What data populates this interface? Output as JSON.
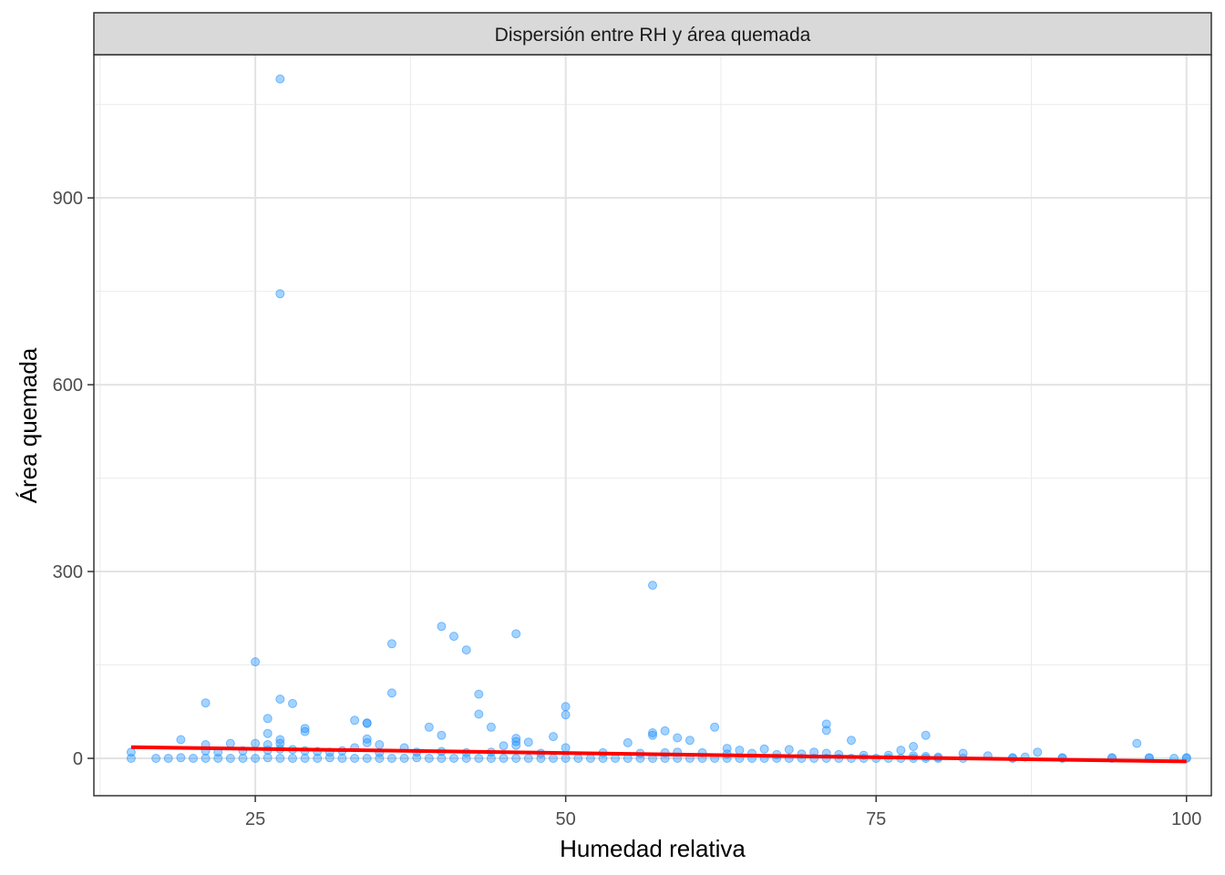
{
  "chart_data": {
    "type": "scatter",
    "title": "Dispersión entre RH y área quemada",
    "xlabel": "Humedad relativa",
    "ylabel": "Área quemada",
    "xlim": [
      12,
      102
    ],
    "ylim": [
      -60,
      1130
    ],
    "x_ticks": [
      25,
      50,
      75,
      100
    ],
    "x_tick_labels": [
      "25",
      "50",
      "75",
      "100"
    ],
    "x_minor": [
      12.5,
      37.5,
      62.5,
      87.5
    ],
    "y_ticks": [
      0,
      300,
      600,
      900
    ],
    "y_tick_labels": [
      "0",
      "300",
      "600",
      "900"
    ],
    "y_minor": [
      150,
      450,
      750,
      1050
    ],
    "grid": true,
    "point_color": "#1E90FF",
    "trend_color": "#FF0000",
    "series": [
      {
        "values": [
          [
            27,
            1091
          ],
          [
            27,
            746
          ],
          [
            57,
            278
          ],
          [
            40,
            212
          ],
          [
            41,
            196
          ],
          [
            46,
            200
          ],
          [
            42,
            174
          ],
          [
            36,
            184
          ],
          [
            25,
            155
          ],
          [
            36,
            105
          ],
          [
            43,
            103
          ],
          [
            27,
            95
          ],
          [
            28,
            88
          ],
          [
            21,
            89
          ],
          [
            50,
            83
          ],
          [
            43,
            71
          ],
          [
            50,
            70
          ],
          [
            26,
            64
          ],
          [
            33,
            61
          ],
          [
            34,
            57
          ],
          [
            34,
            56
          ],
          [
            71,
            55
          ],
          [
            62,
            50
          ],
          [
            29,
            48
          ],
          [
            39,
            50
          ],
          [
            44,
            50
          ],
          [
            29,
            43
          ],
          [
            26,
            40
          ],
          [
            40,
            37
          ],
          [
            57,
            41
          ],
          [
            58,
            44
          ],
          [
            57,
            37
          ],
          [
            71,
            45
          ],
          [
            79,
            37
          ],
          [
            19,
            30
          ],
          [
            27,
            30
          ],
          [
            34,
            31
          ],
          [
            46,
            32
          ],
          [
            49,
            35
          ],
          [
            59,
            33
          ],
          [
            60,
            29
          ],
          [
            73,
            29
          ],
          [
            34,
            25
          ],
          [
            46,
            27
          ],
          [
            47,
            26
          ],
          [
            55,
            25
          ],
          [
            96,
            24
          ],
          [
            21,
            22
          ],
          [
            23,
            24
          ],
          [
            25,
            24
          ],
          [
            26,
            22
          ],
          [
            27,
            24
          ],
          [
            35,
            22
          ],
          [
            45,
            20
          ],
          [
            46,
            21
          ],
          [
            78,
            19
          ],
          [
            33,
            17
          ],
          [
            37,
            17
          ],
          [
            50,
            17
          ],
          [
            63,
            16
          ],
          [
            66,
            15
          ],
          [
            68,
            14
          ],
          [
            77,
            13
          ],
          [
            64,
            13
          ],
          [
            88,
            10
          ],
          [
            70,
            10
          ],
          [
            82,
            8
          ],
          [
            15,
            10
          ],
          [
            21,
            12
          ],
          [
            22,
            10
          ],
          [
            24,
            12
          ],
          [
            26,
            13
          ],
          [
            27,
            15
          ],
          [
            28,
            14
          ],
          [
            29,
            12
          ],
          [
            30,
            11
          ],
          [
            31,
            10
          ],
          [
            32,
            12
          ],
          [
            35,
            9
          ],
          [
            38,
            10
          ],
          [
            40,
            11
          ],
          [
            42,
            9
          ],
          [
            44,
            10
          ],
          [
            48,
            8
          ],
          [
            53,
            9
          ],
          [
            56,
            8
          ],
          [
            58,
            9
          ],
          [
            59,
            10
          ],
          [
            61,
            9
          ],
          [
            63,
            7
          ],
          [
            65,
            8
          ],
          [
            67,
            6
          ],
          [
            69,
            7
          ],
          [
            71,
            8
          ],
          [
            72,
            6
          ],
          [
            74,
            5
          ],
          [
            76,
            5
          ],
          [
            78,
            4
          ],
          [
            79,
            3
          ],
          [
            80,
            2
          ],
          [
            84,
            4
          ],
          [
            86,
            1
          ],
          [
            87,
            2
          ],
          [
            90,
            1
          ],
          [
            94,
            1
          ],
          [
            97,
            1
          ],
          [
            99,
            0
          ],
          [
            100,
            1
          ],
          [
            15,
            0
          ],
          [
            17,
            0
          ],
          [
            18,
            0
          ],
          [
            19,
            1
          ],
          [
            20,
            0
          ],
          [
            21,
            0
          ],
          [
            22,
            0
          ],
          [
            23,
            0
          ],
          [
            24,
            0
          ],
          [
            25,
            0
          ],
          [
            26,
            1
          ],
          [
            27,
            0
          ],
          [
            28,
            0
          ],
          [
            29,
            0
          ],
          [
            30,
            0
          ],
          [
            31,
            1
          ],
          [
            32,
            0
          ],
          [
            33,
            0
          ],
          [
            34,
            0
          ],
          [
            35,
            0
          ],
          [
            36,
            0
          ],
          [
            37,
            0
          ],
          [
            38,
            1
          ],
          [
            39,
            0
          ],
          [
            40,
            0
          ],
          [
            41,
            0
          ],
          [
            42,
            0
          ],
          [
            43,
            0
          ],
          [
            44,
            0
          ],
          [
            45,
            0
          ],
          [
            46,
            0
          ],
          [
            47,
            0
          ],
          [
            48,
            0
          ],
          [
            49,
            0
          ],
          [
            50,
            0
          ],
          [
            51,
            0
          ],
          [
            52,
            0
          ],
          [
            53,
            0
          ],
          [
            54,
            0
          ],
          [
            55,
            0
          ],
          [
            56,
            0
          ],
          [
            57,
            0
          ],
          [
            58,
            0
          ],
          [
            59,
            0
          ],
          [
            60,
            0
          ],
          [
            61,
            0
          ],
          [
            62,
            0
          ],
          [
            63,
            0
          ],
          [
            64,
            0
          ],
          [
            65,
            0
          ],
          [
            66,
            0
          ],
          [
            67,
            0
          ],
          [
            68,
            0
          ],
          [
            69,
            0
          ],
          [
            70,
            0
          ],
          [
            71,
            0
          ],
          [
            72,
            0
          ],
          [
            73,
            0
          ],
          [
            74,
            0
          ],
          [
            75,
            0
          ],
          [
            76,
            0
          ],
          [
            77,
            0
          ],
          [
            78,
            0
          ],
          [
            79,
            0
          ],
          [
            80,
            0
          ],
          [
            82,
            0
          ],
          [
            86,
            0
          ],
          [
            90,
            0
          ],
          [
            94,
            0
          ],
          [
            97,
            0
          ],
          [
            100,
            0
          ]
        ]
      }
    ],
    "trend_line": {
      "x": [
        15,
        100
      ],
      "y": [
        18,
        -5
      ]
    }
  }
}
